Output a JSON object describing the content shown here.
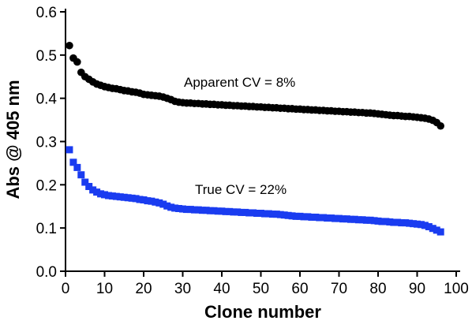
{
  "chart_data": {
    "type": "scatter",
    "title": "",
    "xlabel": "Clone number",
    "ylabel": "Abs @ 405 nm",
    "xlim": [
      0,
      100
    ],
    "ylim": [
      0.0,
      0.6
    ],
    "xticks": [
      "0",
      "10",
      "20",
      "30",
      "40",
      "50",
      "60",
      "70",
      "80",
      "90",
      "100"
    ],
    "yticks": [
      "0.0",
      "0.1",
      "0.2",
      "0.3",
      "0.4",
      "0.5",
      "0.6"
    ],
    "grid": false,
    "legend": "none",
    "annotations": [
      {
        "text": "Apparent CV = 8%",
        "series": 0
      },
      {
        "text": "True CV = 22%",
        "series": 1
      }
    ],
    "series": [
      {
        "marker": "circle",
        "color": "#000000",
        "x": [
          1,
          2,
          3,
          4,
          5,
          6,
          7,
          8,
          9,
          10,
          11,
          12,
          13,
          14,
          15,
          16,
          17,
          18,
          19,
          20,
          21,
          22,
          23,
          24,
          25,
          26,
          27,
          28,
          29,
          30,
          31,
          32,
          33,
          34,
          35,
          36,
          37,
          38,
          39,
          40,
          41,
          42,
          43,
          44,
          45,
          46,
          47,
          48,
          49,
          50,
          51,
          52,
          53,
          54,
          55,
          56,
          57,
          58,
          59,
          60,
          61,
          62,
          63,
          64,
          65,
          66,
          67,
          68,
          69,
          70,
          71,
          72,
          73,
          74,
          75,
          76,
          77,
          78,
          79,
          80,
          81,
          82,
          83,
          84,
          85,
          86,
          87,
          88,
          89,
          90,
          91,
          92,
          93,
          94,
          95,
          96
        ],
        "values": [
          0.522,
          0.493,
          0.484,
          0.46,
          0.45,
          0.444,
          0.438,
          0.433,
          0.43,
          0.427,
          0.425,
          0.423,
          0.422,
          0.42,
          0.418,
          0.417,
          0.415,
          0.414,
          0.412,
          0.409,
          0.408,
          0.407,
          0.406,
          0.405,
          0.403,
          0.4,
          0.397,
          0.393,
          0.391,
          0.39,
          0.389,
          0.389,
          0.388,
          0.388,
          0.387,
          0.387,
          0.386,
          0.386,
          0.385,
          0.385,
          0.384,
          0.384,
          0.383,
          0.383,
          0.382,
          0.382,
          0.381,
          0.381,
          0.38,
          0.38,
          0.379,
          0.379,
          0.378,
          0.378,
          0.377,
          0.377,
          0.376,
          0.376,
          0.375,
          0.375,
          0.374,
          0.374,
          0.373,
          0.373,
          0.372,
          0.372,
          0.371,
          0.371,
          0.37,
          0.37,
          0.369,
          0.369,
          0.368,
          0.368,
          0.367,
          0.367,
          0.366,
          0.366,
          0.365,
          0.364,
          0.363,
          0.362,
          0.361,
          0.36,
          0.36,
          0.359,
          0.358,
          0.358,
          0.357,
          0.356,
          0.355,
          0.354,
          0.352,
          0.349,
          0.344,
          0.336
        ]
      },
      {
        "marker": "square",
        "color": "#1a3cf0",
        "x": [
          1,
          2,
          3,
          4,
          5,
          6,
          7,
          8,
          9,
          10,
          11,
          12,
          13,
          14,
          15,
          16,
          17,
          18,
          19,
          20,
          21,
          22,
          23,
          24,
          25,
          26,
          27,
          28,
          29,
          30,
          31,
          32,
          33,
          34,
          35,
          36,
          37,
          38,
          39,
          40,
          41,
          42,
          43,
          44,
          45,
          46,
          47,
          48,
          49,
          50,
          51,
          52,
          53,
          54,
          55,
          56,
          57,
          58,
          59,
          60,
          61,
          62,
          63,
          64,
          65,
          66,
          67,
          68,
          69,
          70,
          71,
          72,
          73,
          74,
          75,
          76,
          77,
          78,
          79,
          80,
          81,
          82,
          83,
          84,
          85,
          86,
          87,
          88,
          89,
          90,
          91,
          92,
          93,
          94,
          95,
          96
        ],
        "values": [
          0.281,
          0.252,
          0.24,
          0.223,
          0.206,
          0.196,
          0.188,
          0.183,
          0.179,
          0.177,
          0.175,
          0.174,
          0.173,
          0.172,
          0.171,
          0.17,
          0.169,
          0.168,
          0.166,
          0.165,
          0.163,
          0.162,
          0.16,
          0.158,
          0.155,
          0.151,
          0.148,
          0.146,
          0.145,
          0.144,
          0.143,
          0.143,
          0.142,
          0.142,
          0.141,
          0.141,
          0.14,
          0.14,
          0.139,
          0.139,
          0.138,
          0.138,
          0.137,
          0.137,
          0.136,
          0.136,
          0.135,
          0.135,
          0.134,
          0.134,
          0.133,
          0.133,
          0.132,
          0.132,
          0.131,
          0.13,
          0.129,
          0.128,
          0.127,
          0.127,
          0.126,
          0.126,
          0.125,
          0.125,
          0.124,
          0.124,
          0.123,
          0.123,
          0.122,
          0.122,
          0.121,
          0.121,
          0.12,
          0.12,
          0.119,
          0.119,
          0.118,
          0.118,
          0.117,
          0.116,
          0.115,
          0.115,
          0.114,
          0.113,
          0.113,
          0.112,
          0.112,
          0.111,
          0.11,
          0.109,
          0.108,
          0.106,
          0.103,
          0.099,
          0.095,
          0.091
        ]
      }
    ]
  }
}
